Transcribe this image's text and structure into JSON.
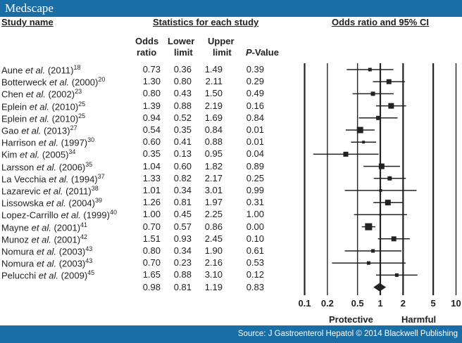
{
  "header": {
    "logo": "Medscape"
  },
  "columns": {
    "study": "Study name",
    "stats_group": "Statistics for each study",
    "plot_group": "Odds ratio and 95% CI",
    "or_1": "Odds",
    "or_2": "ratio",
    "lower_1": "Lower",
    "lower_2": "limit",
    "upper_1": "Upper",
    "upper_2": "limit",
    "p_italic": "P",
    "p_rest": "-Value"
  },
  "chart_data": {
    "type": "forest",
    "xlabel_left": "Protective",
    "xlabel_right": "Harmful",
    "x_scale": "log",
    "xlim": [
      0.1,
      10
    ],
    "ticks": [
      "0.1",
      "0.2",
      "0.5",
      "1",
      "2",
      "5",
      "10"
    ],
    "grid": true,
    "studies": [
      {
        "author": "Aune",
        "etal": "et al.",
        "year": "(2011)",
        "ref": "18",
        "or": "0.73",
        "lower": "0.36",
        "upper": "1.49",
        "p": "0.39"
      },
      {
        "author": "Botterweck",
        "etal": "et al.",
        "year": "(2000)",
        "ref": "20",
        "or": "1.30",
        "lower": "0.80",
        "upper": "2.11",
        "p": "0.29"
      },
      {
        "author": "Chen",
        "etal": "et al.",
        "year": "(2002)",
        "ref": "23",
        "or": "0.80",
        "lower": "0.43",
        "upper": "1.50",
        "p": "0.49"
      },
      {
        "author": "Eplein",
        "etal": "et al.",
        "year": "(2010)",
        "ref": "25",
        "or": "1.39",
        "lower": "0.88",
        "upper": "2.19",
        "p": "0.16"
      },
      {
        "author": "Eplein",
        "etal": "et al.",
        "year": "(2010)",
        "ref": "25",
        "or": "0.94",
        "lower": "0.52",
        "upper": "1.69",
        "p": "0.84"
      },
      {
        "author": "Gao",
        "etal": "et al.",
        "year": "(2013)",
        "ref": "27",
        "or": "0.54",
        "lower": "0.35",
        "upper": "0.84",
        "p": "0.01"
      },
      {
        "author": "Harrison",
        "etal": "et al.",
        "year": "(1997)",
        "ref": "30",
        "or": "0.60",
        "lower": "0.41",
        "upper": "0.88",
        "p": "0.01"
      },
      {
        "author": "Kim",
        "etal": "et al.",
        "year": "(2005)",
        "ref": "34",
        "or": "0.35",
        "lower": "0.13",
        "upper": "0.95",
        "p": "0.04"
      },
      {
        "author": "Larsson",
        "etal": "et al.",
        "year": "(2006)",
        "ref": "35",
        "or": "1.04",
        "lower": "0.60",
        "upper": "1.82",
        "p": "0.89"
      },
      {
        "author": "La Vecchia",
        "etal": "et al.",
        "year": "(1994)",
        "ref": "37",
        "or": "1.33",
        "lower": "0.82",
        "upper": "2.17",
        "p": "0.25"
      },
      {
        "author": "Lazarevic",
        "etal": "et al.",
        "year": "(2011)",
        "ref": "38",
        "or": "1.01",
        "lower": "0.34",
        "upper": "3.01",
        "p": "0.99"
      },
      {
        "author": "Lissowska",
        "etal": "et al.",
        "year": "(2004)",
        "ref": "39",
        "or": "1.26",
        "lower": "0.81",
        "upper": "1.97",
        "p": "0.31"
      },
      {
        "author": "Lopez-Carrillo",
        "etal": "et al.",
        "year": "(1999)",
        "ref": "40",
        "or": "1.00",
        "lower": "0.45",
        "upper": "2.25",
        "p": "1.00"
      },
      {
        "author": "Mayne",
        "etal": "et al.",
        "year": "(2001)",
        "ref": "41",
        "or": "0.70",
        "lower": "0.57",
        "upper": "0.86",
        "p": "0.00"
      },
      {
        "author": "Munoz",
        "etal": "et al.",
        "year": "(2001)",
        "ref": "42",
        "or": "1.51",
        "lower": "0.93",
        "upper": "2.45",
        "p": "0.10"
      },
      {
        "author": "Nomura",
        "etal": "et al.",
        "year": "(2003)",
        "ref": "43",
        "or": "0.80",
        "lower": "0.34",
        "upper": "1.90",
        "p": "0.61"
      },
      {
        "author": "Nomura",
        "etal": "et al.",
        "year": "(2003)",
        "ref": "43",
        "or": "0.70",
        "lower": "0.23",
        "upper": "2.16",
        "p": "0.53"
      },
      {
        "author": "Pelucchi",
        "etal": "et al.",
        "year": "(2009)",
        "ref": "45",
        "or": "1.65",
        "lower": "0.88",
        "upper": "3.10",
        "p": "0.12"
      }
    ],
    "summary": {
      "or": "0.98",
      "lower": "0.81",
      "upper": "1.19",
      "p": "0.83"
    }
  },
  "footer": {
    "source": "Source: J Gastroenterol Hepatol © 2014 Blackwell Publishing"
  },
  "colors": {
    "brand": "#1a6ea6",
    "marks": "#222222"
  }
}
